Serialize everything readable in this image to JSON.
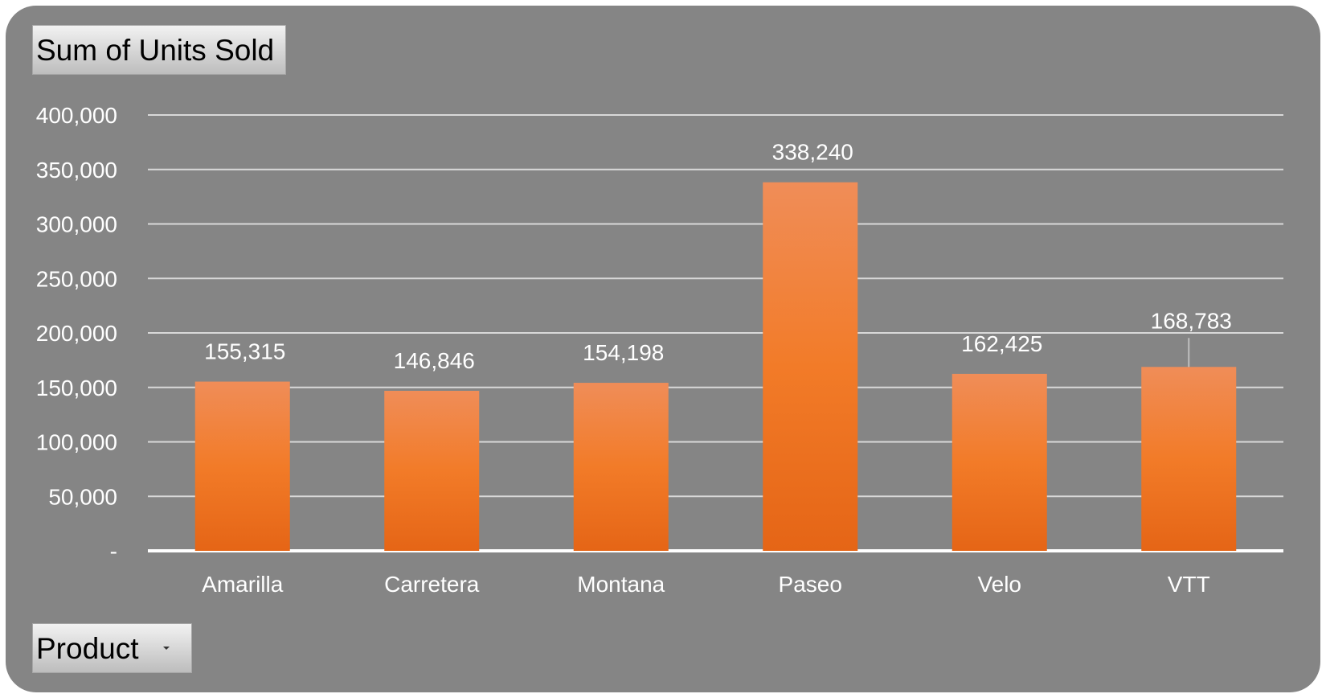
{
  "pivot": {
    "value_field": "Sum of Units Sold",
    "axis_field": "Product",
    "dropdown_icon": "dropdown-arrow-icon"
  },
  "colors": {
    "background": "#858585",
    "bar_top": "#f08d58",
    "bar_mid": "#f27b28",
    "bar_bottom": "#e56516",
    "gridline": "#d9d9d9",
    "text": "#ffffff"
  },
  "chart_data": {
    "type": "bar",
    "title": "",
    "xlabel": "",
    "ylabel": "",
    "categories": [
      "Amarilla",
      "Carretera",
      "Montana",
      "Paseo",
      "Velo",
      "VTT"
    ],
    "values": [
      155315,
      146846,
      154198,
      338240,
      162425,
      168783
    ],
    "data_labels": [
      "155,315",
      "146,846",
      "154,198",
      "338,240",
      "162,425",
      "168,783"
    ],
    "ylim": [
      0,
      400000
    ],
    "yticks": [
      0,
      50000,
      100000,
      150000,
      200000,
      250000,
      300000,
      350000,
      400000
    ],
    "ytick_labels": [
      "-",
      "50,000",
      "100,000",
      "150,000",
      "200,000",
      "250,000",
      "300,000",
      "350,000",
      "400,000"
    ],
    "grid": true,
    "legend": "none"
  }
}
